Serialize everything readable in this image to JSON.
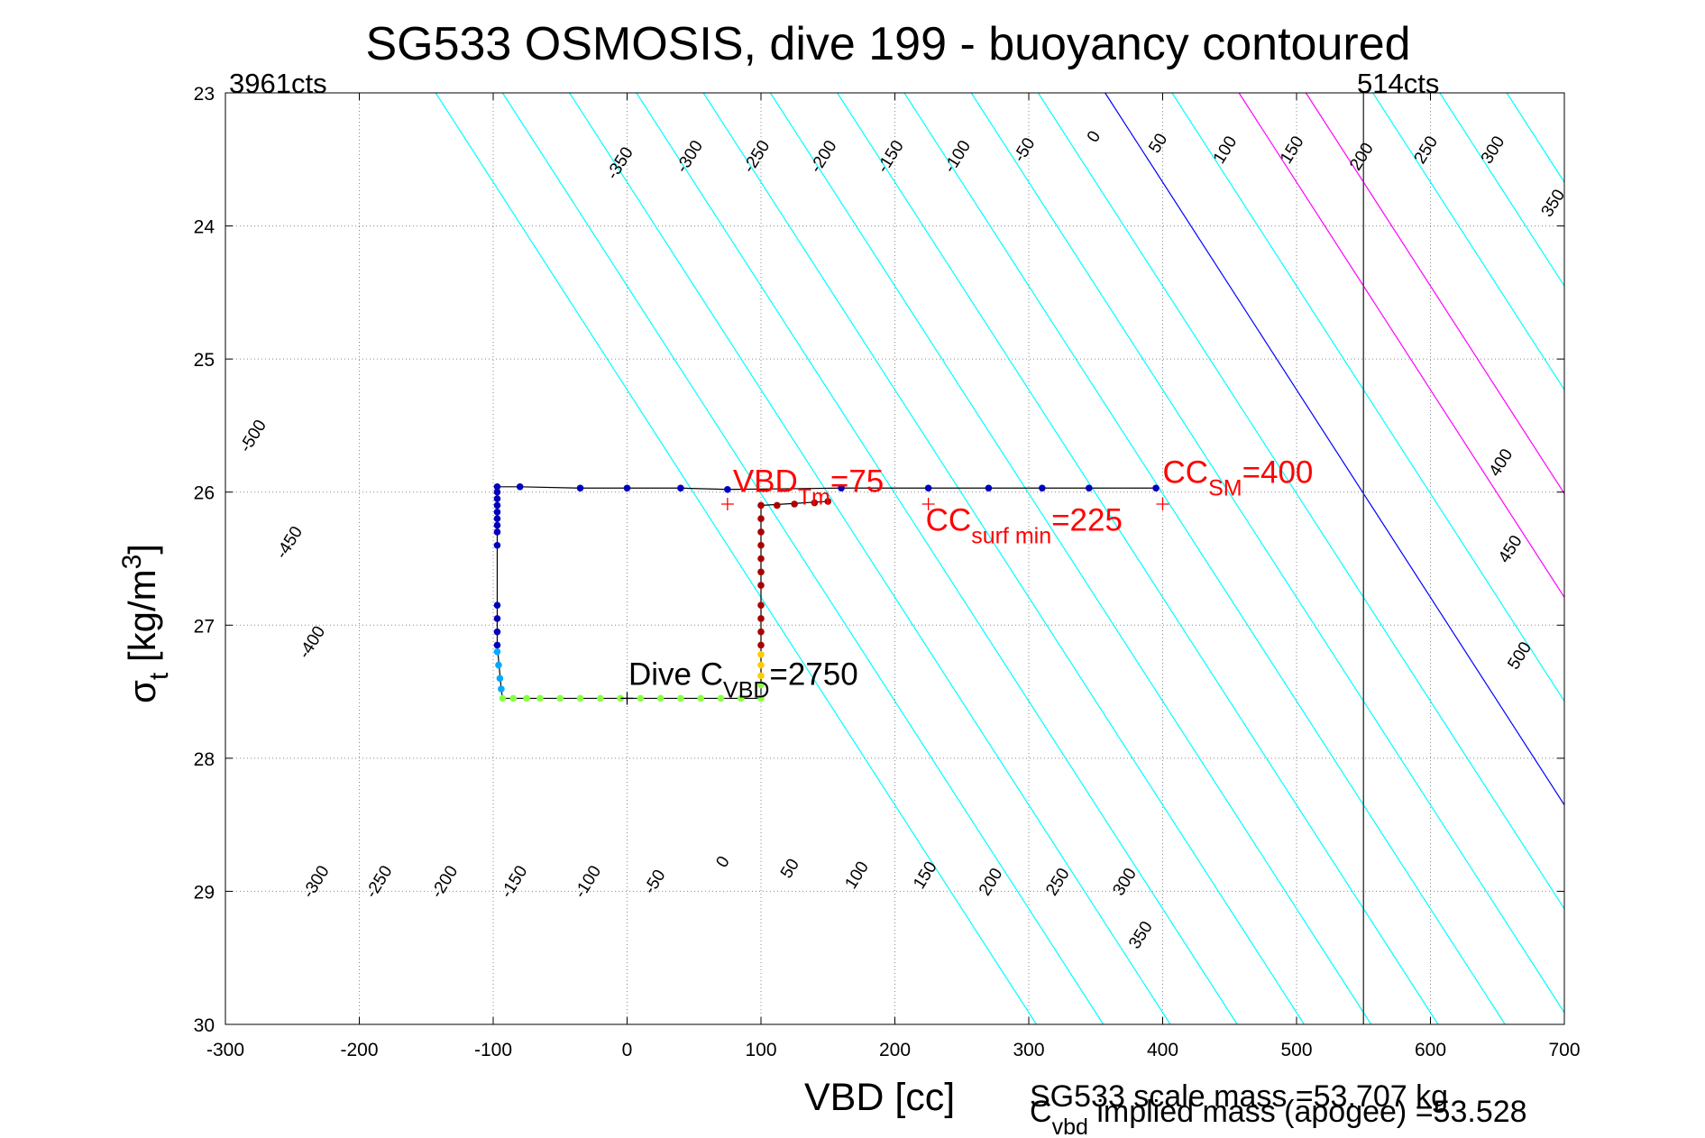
{
  "chart_data": {
    "type": "scatter",
    "title": "SG533 OSMOSIS, dive 199 - buoyancy contoured",
    "xlabel": "VBD [cc]",
    "ylabel_main": "σ",
    "ylabel_sub": "t",
    "ylabel_units": " [kg/m",
    "ylabel_sup": "3",
    "ylabel_close": "]",
    "xlim": [
      -300,
      700
    ],
    "ylim": [
      23,
      30
    ],
    "y_reversed": true,
    "grid": true,
    "x_ticks": [
      -300,
      -200,
      -100,
      0,
      100,
      200,
      300,
      400,
      500,
      600,
      700
    ],
    "y_ticks": [
      23,
      24,
      25,
      26,
      27,
      28,
      29,
      30
    ],
    "corner_labels": {
      "left": "3961cts",
      "right": "514cts"
    },
    "counts_limit_line_x": 550,
    "contour_slope_cc_per_sigma": 64.1,
    "zero_contour": {
      "x": 357,
      "y": 23
    },
    "contours": [
      {
        "value": -500,
        "label": "-500",
        "color": "#00ffff",
        "label_at": [
          -276,
          25.6
        ]
      },
      {
        "value": -450,
        "label": "-450",
        "color": "#00ffff",
        "label_at": [
          -249,
          26.4
        ]
      },
      {
        "value": -400,
        "label": "-400",
        "color": "#00ffff",
        "label_at": [
          -232,
          27.15
        ]
      },
      {
        "value": -350,
        "label": "-350",
        "color": "#00ffff",
        "label_at": [
          -2,
          23.55
        ]
      },
      {
        "value": -300,
        "label": "-300",
        "color": "#00ffff",
        "label_at": [
          50,
          23.5
        ]
      },
      {
        "value": -250,
        "label": "-250",
        "color": "#00ffff",
        "label_at": [
          100,
          23.5
        ]
      },
      {
        "value": -200,
        "label": "-200",
        "color": "#00ffff",
        "label_at": [
          150,
          23.5
        ]
      },
      {
        "value": -150,
        "label": "-150",
        "color": "#00ffff",
        "label_at": [
          200,
          23.5
        ]
      },
      {
        "value": -100,
        "label": "-100",
        "color": "#00ffff",
        "label_at": [
          250,
          23.5
        ]
      },
      {
        "value": -50,
        "label": "-50",
        "color": "#00ffff",
        "label_at": [
          300,
          23.45
        ]
      },
      {
        "value": 0,
        "label": "0",
        "color": "#0000ff",
        "label_at": [
          352,
          23.35
        ]
      },
      {
        "value": 50,
        "label": "50",
        "color": "#00ffff",
        "label_at": [
          400,
          23.4
        ]
      },
      {
        "value": 100,
        "label": "100",
        "color": "#ff00ff",
        "label_at": [
          450,
          23.45
        ]
      },
      {
        "value": 150,
        "label": "150",
        "color": "#ff00ff",
        "label_at": [
          500,
          23.45
        ]
      },
      {
        "value": 200,
        "label": "200",
        "color": "#00ffff",
        "label_at": [
          552,
          23.5
        ]
      },
      {
        "value": 250,
        "label": "250",
        "color": "#00ffff",
        "label_at": [
          600,
          23.45
        ]
      },
      {
        "value": 300,
        "label": "300",
        "color": "#00ffff",
        "label_at": [
          650,
          23.45
        ]
      },
      {
        "value": 350,
        "label": "350",
        "color": "#00ffff",
        "label_at": [
          695,
          23.85
        ]
      }
    ],
    "contour_labels_lower": [
      {
        "label": "-300",
        "at": [
          -229,
          28.95
        ]
      },
      {
        "label": "-250",
        "at": [
          -182,
          28.95
        ]
      },
      {
        "label": "-200",
        "at": [
          -133,
          28.95
        ]
      },
      {
        "label": "-150",
        "at": [
          -81,
          28.95
        ]
      },
      {
        "label": "-100",
        "at": [
          -26,
          28.95
        ]
      },
      {
        "label": "-50",
        "at": [
          24,
          28.95
        ]
      },
      {
        "label": "0",
        "at": [
          75,
          28.8
        ]
      },
      {
        "label": "50",
        "at": [
          125,
          28.85
        ]
      },
      {
        "label": "100",
        "at": [
          175,
          28.9
        ]
      },
      {
        "label": "150",
        "at": [
          226,
          28.9
        ]
      },
      {
        "label": "200",
        "at": [
          275,
          28.95
        ]
      },
      {
        "label": "250",
        "at": [
          325,
          28.95
        ]
      },
      {
        "label": "300",
        "at": [
          375,
          28.95
        ]
      },
      {
        "label": "350",
        "at": [
          387,
          29.35
        ]
      }
    ],
    "contour_labels_right": [
      {
        "label": "400",
        "at": [
          656,
          25.8
        ]
      },
      {
        "label": "450",
        "at": [
          663,
          26.45
        ]
      },
      {
        "label": "500",
        "at": [
          670,
          27.25
        ]
      }
    ],
    "series": [
      {
        "x": [
          75,
          160,
          225,
          270,
          310,
          345,
          395,
          40,
          0,
          -35,
          -80,
          -97,
          -97,
          -97,
          -97,
          -97,
          -97,
          -97,
          -97,
          -97,
          -97,
          -97,
          -97,
          -97
        ],
        "y": [
          25.98,
          25.97,
          25.97,
          25.97,
          25.97,
          25.97,
          25.97,
          25.97,
          25.97,
          25.97,
          25.96,
          25.96,
          26.0,
          26.05,
          26.1,
          26.15,
          26.2,
          26.25,
          26.3,
          26.4,
          26.85,
          26.95,
          27.05,
          27.15
        ],
        "color": "#0000bb"
      },
      {
        "x": [
          -97,
          -96,
          -95,
          -94
        ],
        "y": [
          27.2,
          27.3,
          27.4,
          27.48
        ],
        "color": "#00aaff"
      },
      {
        "x": [
          -93,
          -85,
          -75,
          -65,
          -50,
          -35,
          -20,
          -5,
          10,
          25,
          40,
          55,
          70,
          85,
          100,
          100
        ],
        "y": [
          27.55,
          27.55,
          27.55,
          27.55,
          27.55,
          27.55,
          27.55,
          27.55,
          27.55,
          27.55,
          27.55,
          27.55,
          27.55,
          27.55,
          27.55,
          27.45
        ],
        "color": "#88ff44"
      },
      {
        "x": [
          100,
          100,
          100
        ],
        "y": [
          27.38,
          27.3,
          27.22
        ],
        "color": "#ffcc00"
      },
      {
        "x": [
          100,
          100,
          100,
          100,
          100,
          100,
          100,
          100,
          100,
          100,
          100,
          112,
          125,
          140,
          150
        ],
        "y": [
          27.15,
          27.05,
          26.95,
          26.85,
          26.7,
          26.6,
          26.5,
          26.4,
          26.3,
          26.2,
          26.1,
          26.1,
          26.09,
          26.08,
          26.07
        ],
        "color": "#aa0000"
      }
    ],
    "track_line": {
      "x": [
        395,
        345,
        310,
        270,
        225,
        160,
        75,
        40,
        0,
        -35,
        -80,
        -97,
        -97,
        -94,
        -93,
        100,
        100,
        150
      ],
      "y": [
        25.97,
        25.97,
        25.97,
        25.97,
        25.97,
        25.97,
        25.98,
        25.97,
        25.97,
        25.97,
        25.96,
        25.96,
        27.15,
        27.48,
        27.55,
        27.55,
        26.1,
        26.07
      ],
      "color": "#000000"
    },
    "annotations": [
      {
        "id": "vbd-tm",
        "color": "#ff0000",
        "main": "VBD",
        "sub": "Tm",
        "tail": "=75",
        "at": [
          79,
          26.0
        ],
        "marker": [
          75,
          26.09
        ]
      },
      {
        "id": "cc-surf",
        "color": "#ff0000",
        "main": "CC",
        "sub": "surf min",
        "tail": "=225",
        "at": [
          223,
          26.29
        ],
        "marker": [
          225,
          26.09
        ]
      },
      {
        "id": "cc-sm",
        "color": "#ff0000",
        "main": "CC",
        "sub": "SM",
        "tail": "=400",
        "at": [
          400,
          25.93
        ],
        "marker": [
          400,
          26.09
        ]
      },
      {
        "id": "dive-cvbd",
        "color": "#000000",
        "main": "Dive C",
        "sub": "VBD",
        "tail": "=2750",
        "at": [
          1,
          27.45
        ],
        "marker": [
          0,
          27.55
        ]
      }
    ],
    "footer": {
      "line1": "SG533 scale mass =53.707 kg",
      "line2_main": "C",
      "line2_sub": "vbd",
      "line2_tail": " implied mass (apogee) =53.528"
    }
  }
}
